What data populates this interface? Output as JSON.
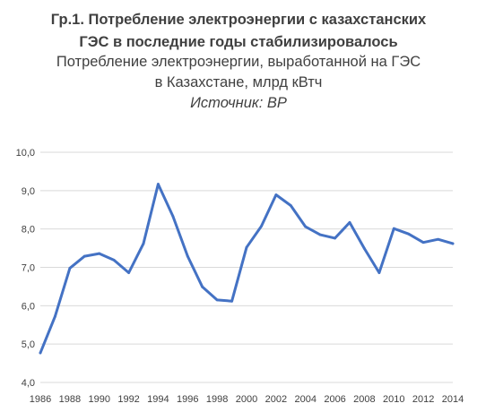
{
  "chart_data": {
    "type": "line",
    "title_lines": [
      "Гр.1. Потребление электроэнергии с казахстанских",
      "ГЭС в последние годы стабилизировалось"
    ],
    "subtitle_lines": [
      "Потребление электроэнергии, выработанной на ГЭС",
      "в Казахстане, млрд кВтч"
    ],
    "source": "Источник: BP",
    "x": [
      1986,
      1987,
      1988,
      1989,
      1990,
      1991,
      1992,
      1993,
      1994,
      1995,
      1996,
      1997,
      1998,
      1999,
      2000,
      2001,
      2002,
      2003,
      2004,
      2005,
      2006,
      2007,
      2008,
      2009,
      2010,
      2011,
      2012,
      2013,
      2014
    ],
    "x_tick_labels": [
      "1986",
      "1988",
      "1990",
      "1992",
      "1994",
      "1996",
      "1998",
      "2000",
      "2002",
      "2004",
      "2006",
      "2008",
      "2010",
      "2012",
      "2014"
    ],
    "y_tick_values": [
      4,
      5,
      6,
      7,
      8,
      9,
      10
    ],
    "y_tick_labels": [
      "4,0",
      "5,0",
      "6,0",
      "7,0",
      "8,0",
      "9,0",
      "10,0"
    ],
    "ylim": [
      4,
      10
    ],
    "grid": "horizontal",
    "legend": "none",
    "series": [
      {
        "values": [
          4.77,
          5.72,
          6.98,
          7.29,
          7.36,
          7.19,
          6.86,
          7.62,
          9.17,
          8.33,
          7.29,
          6.49,
          6.15,
          6.12,
          7.52,
          8.07,
          8.89,
          8.61,
          8.06,
          7.85,
          7.76,
          8.17,
          7.49,
          6.86,
          8.01,
          7.87,
          7.65,
          7.73,
          7.62
        ],
        "color": "#4472c4"
      }
    ]
  }
}
